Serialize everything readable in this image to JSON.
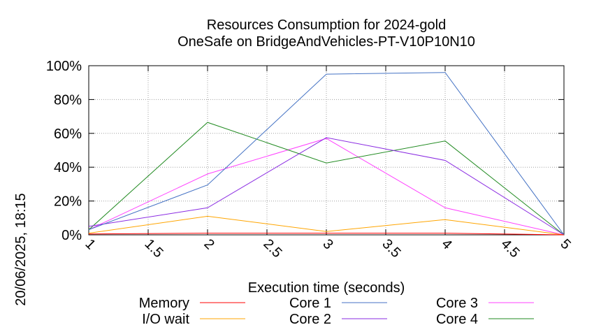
{
  "chart_data": {
    "type": "line",
    "title": "Resources Consumption for 2024-gold",
    "subtitle": "OneSafe on BridgeAndVehicles-PT-V10P10N10",
    "xlabel": "Execution time (seconds)",
    "ylabel": "",
    "timestamp": "20/06/2025, 18:15",
    "xlim": [
      1,
      5
    ],
    "ylim": [
      0,
      100
    ],
    "x_ticks": [
      "1",
      "1.5",
      "2",
      "2.5",
      "3",
      "3.5",
      "4",
      "4.5",
      "5"
    ],
    "y_ticks": [
      "0%",
      "20%",
      "40%",
      "60%",
      "80%",
      "100%"
    ],
    "grid": true,
    "legend_position": "bottom",
    "x": [
      1,
      2,
      3,
      4,
      5
    ],
    "series": [
      {
        "name": "Memory",
        "color": "#ff0000",
        "values": [
          0.5,
          1,
          1,
          1,
          0
        ]
      },
      {
        "name": "I/O wait",
        "color": "#ffa500",
        "values": [
          1,
          11,
          2,
          9,
          0
        ]
      },
      {
        "name": "Core 1",
        "color": "#4472c4",
        "values": [
          3,
          29.5,
          95,
          96,
          0
        ]
      },
      {
        "name": "Core 2",
        "color": "#8a2be2",
        "values": [
          5,
          16,
          57.5,
          44,
          0
        ]
      },
      {
        "name": "Core 3",
        "color": "#ff40ff",
        "values": [
          3,
          36,
          57,
          16,
          0
        ]
      },
      {
        "name": "Core 4",
        "color": "#228b22",
        "values": [
          3,
          66.5,
          42.5,
          55.5,
          0
        ]
      }
    ]
  }
}
